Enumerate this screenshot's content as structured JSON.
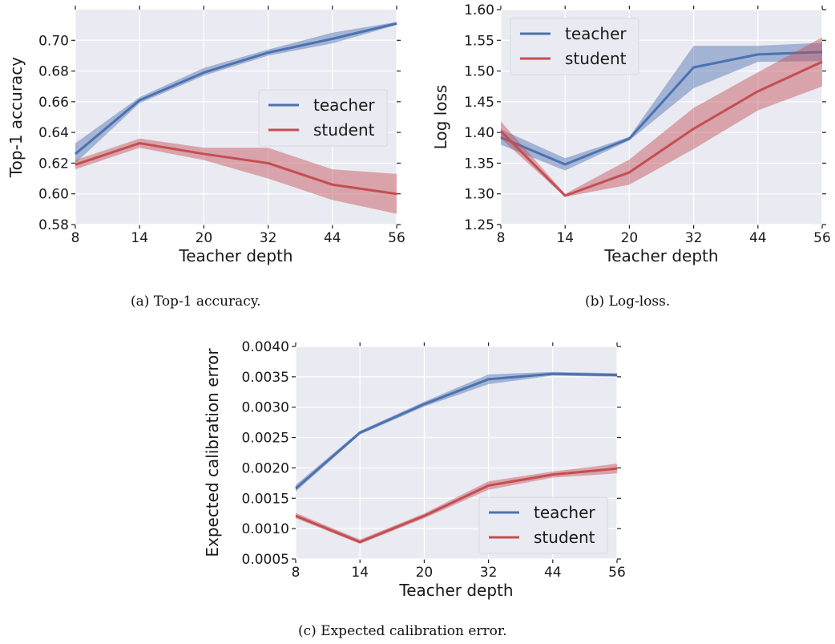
{
  "colors": {
    "teacher": "#4c72b0",
    "student": "#c44e52",
    "background": "#eaeaf2"
  },
  "chart_data": [
    {
      "id": "a",
      "type": "line",
      "caption": "(a) Top-1 accuracy.",
      "xlabel": "Teacher depth",
      "ylabel": "Top-1 accuracy",
      "x": [
        8,
        14,
        20,
        32,
        44,
        56
      ],
      "xticks": [
        "8",
        "14",
        "20",
        "32",
        "44",
        "56"
      ],
      "ylim": [
        0.58,
        0.72
      ],
      "yticks": [
        "0.58",
        "0.60",
        "0.62",
        "0.64",
        "0.66",
        "0.68",
        "0.70"
      ],
      "legend": "center-right",
      "grid": true,
      "series": [
        {
          "name": "teacher",
          "values": [
            0.626,
            0.661,
            0.679,
            0.692,
            0.701,
            0.711
          ],
          "lower": [
            0.62,
            0.659,
            0.677,
            0.69,
            0.698,
            0.71
          ],
          "upper": [
            0.633,
            0.663,
            0.682,
            0.694,
            0.705,
            0.712
          ]
        },
        {
          "name": "student",
          "values": [
            0.619,
            0.633,
            0.626,
            0.62,
            0.606,
            0.6
          ],
          "lower": [
            0.616,
            0.63,
            0.622,
            0.61,
            0.596,
            0.587
          ],
          "upper": [
            0.622,
            0.636,
            0.63,
            0.63,
            0.616,
            0.613
          ]
        }
      ]
    },
    {
      "id": "b",
      "type": "line",
      "caption": "(b) Log-loss.",
      "xlabel": "Teacher depth",
      "ylabel": "Log loss",
      "x": [
        8,
        14,
        20,
        32,
        44,
        56
      ],
      "xticks": [
        "8",
        "14",
        "20",
        "32",
        "44",
        "56"
      ],
      "ylim": [
        1.25,
        1.6
      ],
      "yticks": [
        "1.25",
        "1.30",
        "1.35",
        "1.40",
        "1.45",
        "1.50",
        "1.55",
        "1.60"
      ],
      "legend": "top-left",
      "grid": true,
      "series": [
        {
          "name": "teacher",
          "values": [
            1.392,
            1.348,
            1.39,
            1.506,
            1.527,
            1.531
          ],
          "lower": [
            1.38,
            1.338,
            1.387,
            1.472,
            1.515,
            1.516
          ],
          "upper": [
            1.405,
            1.358,
            1.393,
            1.541,
            1.541,
            1.546
          ]
        },
        {
          "name": "student",
          "values": [
            1.402,
            1.297,
            1.335,
            1.406,
            1.467,
            1.515
          ],
          "lower": [
            1.39,
            1.295,
            1.315,
            1.373,
            1.436,
            1.475
          ],
          "upper": [
            1.418,
            1.3,
            1.356,
            1.44,
            1.498,
            1.555
          ]
        }
      ]
    },
    {
      "id": "c",
      "type": "line",
      "caption": "(c) Expected calibration error.",
      "xlabel": "Teacher depth",
      "ylabel": "Expected calibration error",
      "x": [
        8,
        14,
        20,
        32,
        44,
        56
      ],
      "xticks": [
        "8",
        "14",
        "20",
        "32",
        "44",
        "56"
      ],
      "ylim": [
        0.0005,
        0.004
      ],
      "yticks": [
        "0.0005",
        "0.0010",
        "0.0015",
        "0.0020",
        "0.0025",
        "0.0030",
        "0.0035",
        "0.0040"
      ],
      "legend": "lower-right",
      "grid": true,
      "series": [
        {
          "name": "teacher",
          "values": [
            0.00166,
            0.00258,
            0.00305,
            0.00346,
            0.00355,
            0.00353
          ],
          "lower": [
            0.00161,
            0.00255,
            0.00301,
            0.00338,
            0.00352,
            0.0035
          ],
          "upper": [
            0.00172,
            0.00261,
            0.00309,
            0.00354,
            0.00358,
            0.00356
          ]
        },
        {
          "name": "student",
          "values": [
            0.00121,
            0.00078,
            0.00121,
            0.00171,
            0.00189,
            0.00199
          ],
          "lower": [
            0.00117,
            0.00075,
            0.00117,
            0.00164,
            0.00184,
            0.00191
          ],
          "upper": [
            0.00126,
            0.00082,
            0.00125,
            0.00178,
            0.00194,
            0.00207
          ]
        }
      ]
    }
  ]
}
